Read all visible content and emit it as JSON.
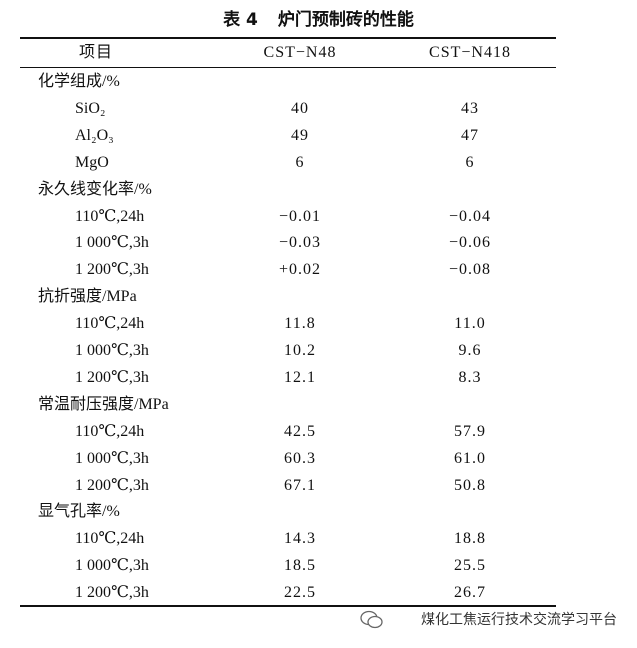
{
  "caption": {
    "label": "表 4",
    "text": "炉门预制砖的性能"
  },
  "table": {
    "header": [
      "项目",
      "CST−N48",
      "CST−N418"
    ],
    "groups": [
      {
        "title": "化学组成/%",
        "items": [
          {
            "label": "SiO₂",
            "values": [
              "40",
              "43"
            ]
          },
          {
            "label": "Al₂O₃",
            "values": [
              "49",
              "47"
            ]
          },
          {
            "label": "MgO",
            "values": [
              "6",
              "6"
            ]
          }
        ]
      },
      {
        "title": "永久线变化率/%",
        "items": [
          {
            "label": "110℃,24h",
            "values": [
              "−0.01",
              "−0.04"
            ]
          },
          {
            "label": "1 000℃,3h",
            "values": [
              "−0.03",
              "−0.06"
            ]
          },
          {
            "label": "1 200℃,3h",
            "values": [
              "+0.02",
              "−0.08"
            ]
          }
        ]
      },
      {
        "title": "抗折强度/MPa",
        "items": [
          {
            "label": "110℃,24h",
            "values": [
              "11.8",
              "11.0"
            ]
          },
          {
            "label": "1 000℃,3h",
            "values": [
              "10.2",
              "9.6"
            ]
          },
          {
            "label": "1 200℃,3h",
            "values": [
              "12.1",
              "8.3"
            ]
          }
        ]
      },
      {
        "title": "常温耐压强度/MPa",
        "items": [
          {
            "label": "110℃,24h",
            "values": [
              "42.5",
              "57.9"
            ]
          },
          {
            "label": "1 000℃,3h",
            "values": [
              "60.3",
              "61.0"
            ]
          },
          {
            "label": "1 200℃,3h",
            "values": [
              "67.1",
              "50.8"
            ]
          }
        ]
      },
      {
        "title": "显气孔率/%",
        "items": [
          {
            "label": "110℃,24h",
            "values": [
              "14.3",
              "18.8"
            ]
          },
          {
            "label": "1 000℃,3h",
            "values": [
              "18.5",
              "25.5"
            ]
          },
          {
            "label": "1 200℃,3h",
            "values": [
              "22.5",
              "26.7"
            ]
          }
        ]
      }
    ]
  },
  "watermark": "煤化工焦运行技术交流学习平台"
}
